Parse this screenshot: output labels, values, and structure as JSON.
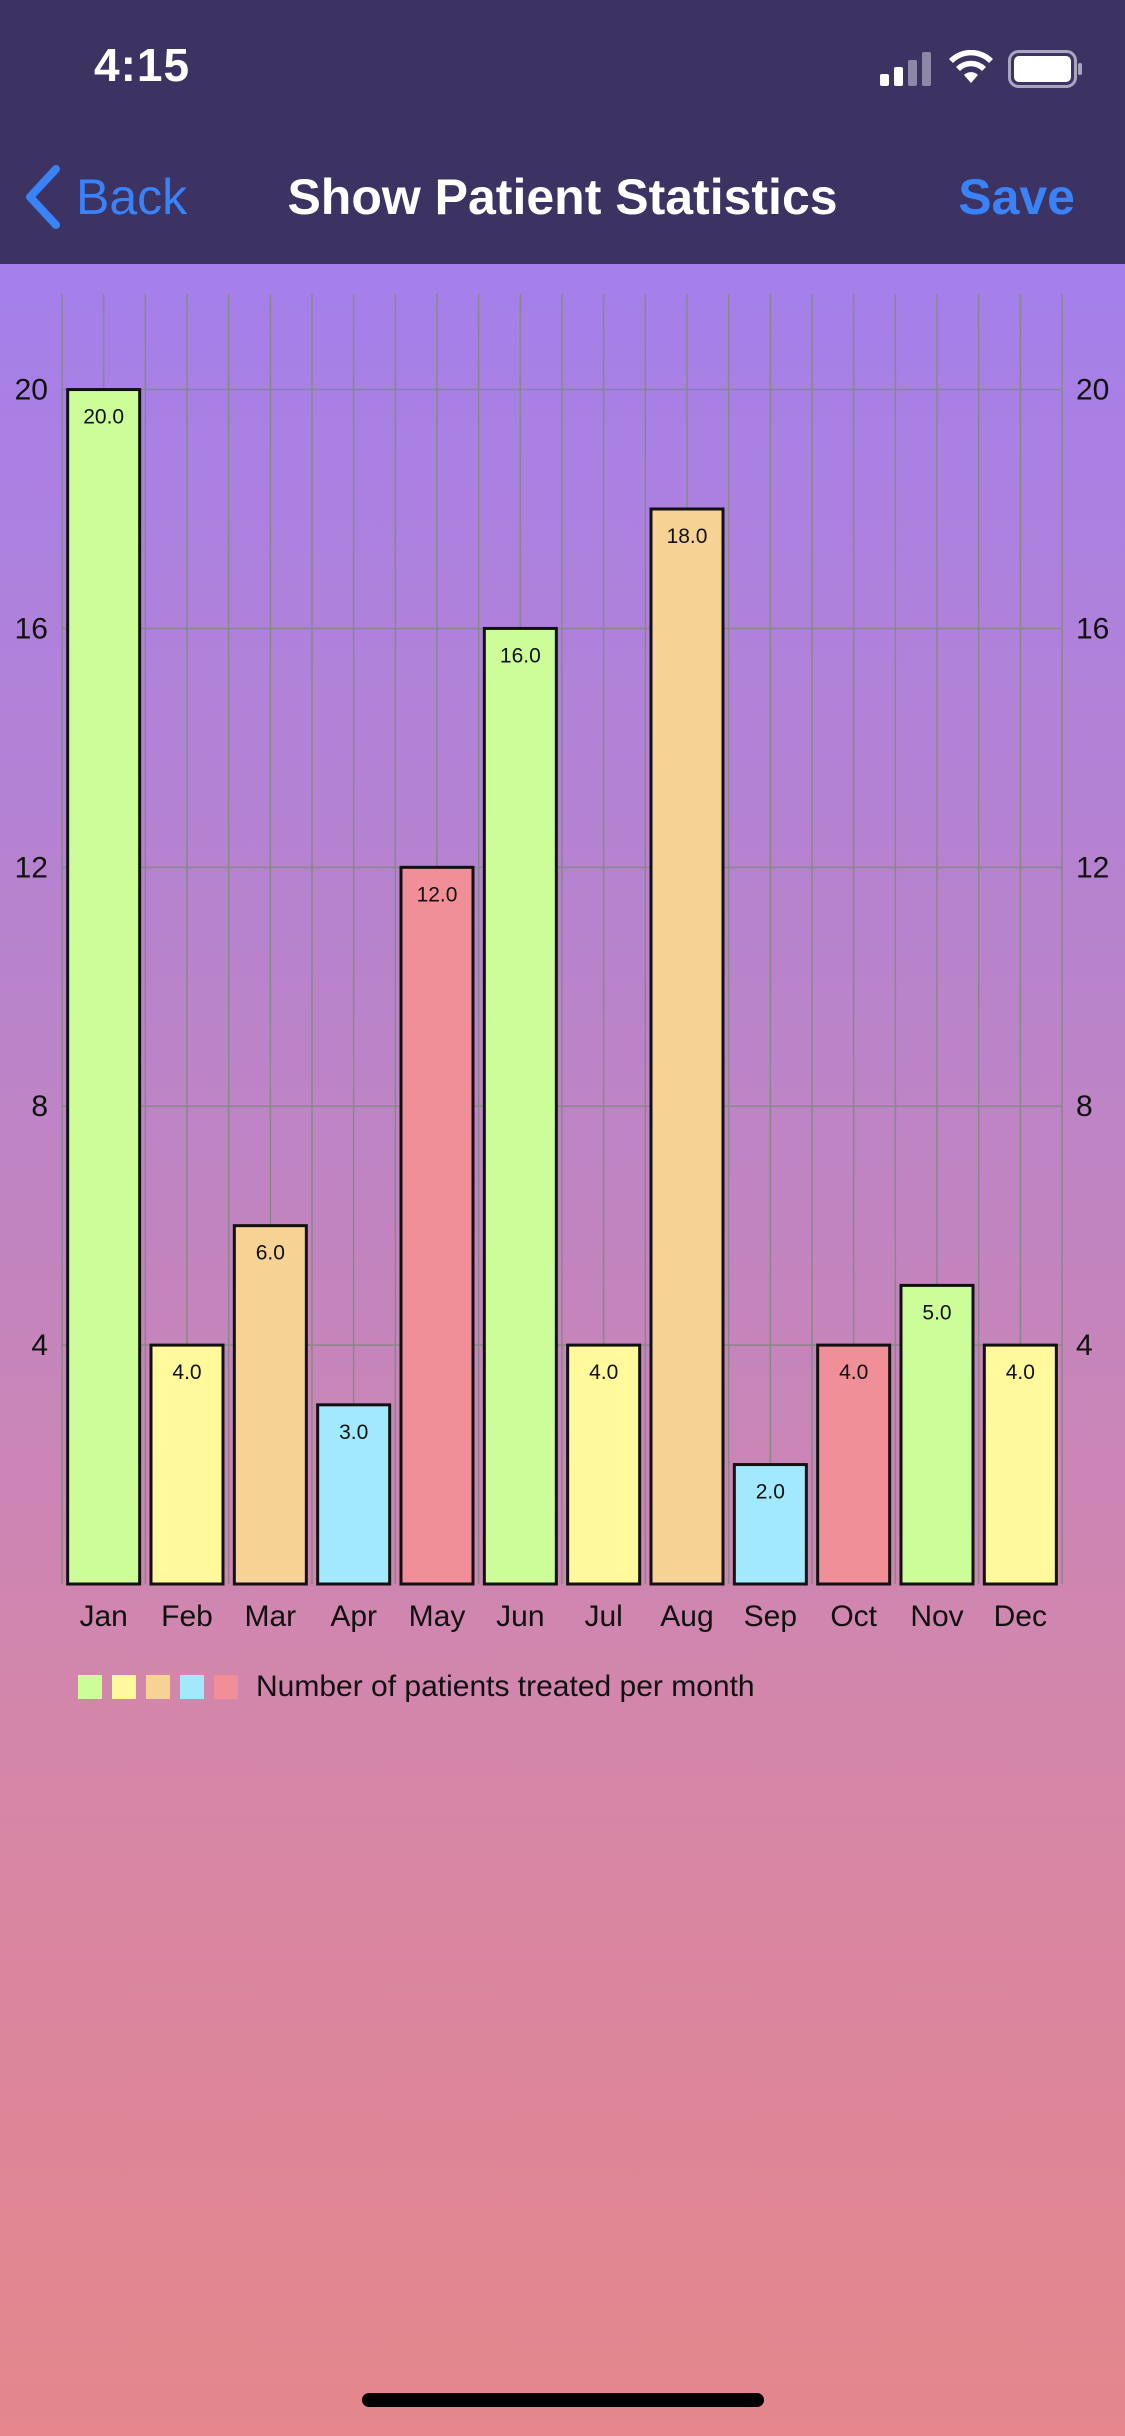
{
  "status_bar": {
    "time": "4:15"
  },
  "nav": {
    "back_label": "Back",
    "title": "Show Patient Statistics",
    "save_label": "Save"
  },
  "legend": {
    "label": "Number of patients treated per month",
    "colors": [
      "#ccfd99",
      "#fff99b",
      "#f6d295",
      "#a3e9fe",
      "#f08f98"
    ]
  },
  "chart_data": {
    "type": "bar",
    "categories": [
      "Jan",
      "Feb",
      "Mar",
      "Apr",
      "May",
      "Jun",
      "Jul",
      "Aug",
      "Sep",
      "Oct",
      "Nov",
      "Dec"
    ],
    "series": [
      {
        "name": "Number of patients treated per month",
        "values": [
          20,
          4,
          6,
          3,
          12,
          16,
          4,
          18,
          2,
          4,
          5,
          4
        ],
        "data_labels": [
          "20.0",
          "4.0",
          "6.0",
          "3.0",
          "12.0",
          "16.0",
          "4.0",
          "18.0",
          "2.0",
          "4.0",
          "5.0",
          "4.0"
        ]
      }
    ],
    "bar_colors": [
      "#ccfd99",
      "#fff99b",
      "#f6d295",
      "#a3e9fe",
      "#f08f98",
      "#ccfd99",
      "#fff99b",
      "#f6d295",
      "#a3e9fe",
      "#f08f98",
      "#ccfd99",
      "#fff99b"
    ],
    "yticks": [
      4,
      8,
      12,
      16,
      20
    ],
    "ylim": [
      0,
      21.6
    ],
    "grid": true,
    "axes": "left-and-right",
    "legend_position": "bottom-left"
  }
}
